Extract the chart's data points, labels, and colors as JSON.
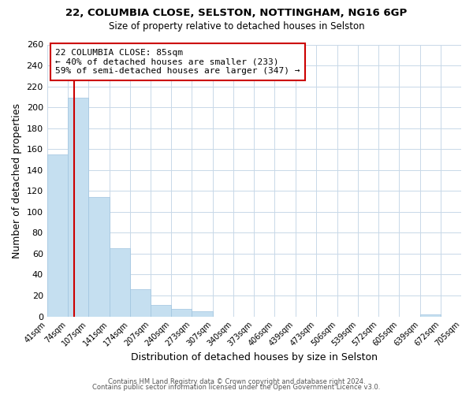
{
  "title": "22, COLUMBIA CLOSE, SELSTON, NOTTINGHAM, NG16 6GP",
  "subtitle": "Size of property relative to detached houses in Selston",
  "xlabel": "Distribution of detached houses by size in Selston",
  "ylabel": "Number of detached properties",
  "bar_edges": [
    41,
    74,
    107,
    141,
    174,
    207,
    240,
    273,
    307,
    340,
    373,
    406,
    439,
    473,
    506,
    539,
    572,
    605,
    639,
    672,
    705
  ],
  "bar_heights": [
    155,
    209,
    114,
    65,
    26,
    11,
    7,
    5,
    0,
    0,
    0,
    0,
    0,
    0,
    0,
    0,
    0,
    0,
    2,
    0,
    0
  ],
  "bar_color": "#c5dff0",
  "vline_x": 85,
  "vline_color": "#cc0000",
  "ylim": [
    0,
    260
  ],
  "yticks": [
    0,
    20,
    40,
    60,
    80,
    100,
    120,
    140,
    160,
    180,
    200,
    220,
    240,
    260
  ],
  "xtick_labels": [
    "41sqm",
    "74sqm",
    "107sqm",
    "141sqm",
    "174sqm",
    "207sqm",
    "240sqm",
    "273sqm",
    "307sqm",
    "340sqm",
    "373sqm",
    "406sqm",
    "439sqm",
    "473sqm",
    "506sqm",
    "539sqm",
    "572sqm",
    "605sqm",
    "639sqm",
    "672sqm",
    "705sqm"
  ],
  "annotation_title": "22 COLUMBIA CLOSE: 85sqm",
  "annotation_line1": "← 40% of detached houses are smaller (233)",
  "annotation_line2": "59% of semi-detached houses are larger (347) →",
  "annotation_box_color": "#ffffff",
  "annotation_box_edgecolor": "#cc0000",
  "footer_line1": "Contains HM Land Registry data © Crown copyright and database right 2024.",
  "footer_line2": "Contains public sector information licensed under the Open Government Licence v3.0.",
  "background_color": "#ffffff",
  "grid_color": "#c8d8e8"
}
